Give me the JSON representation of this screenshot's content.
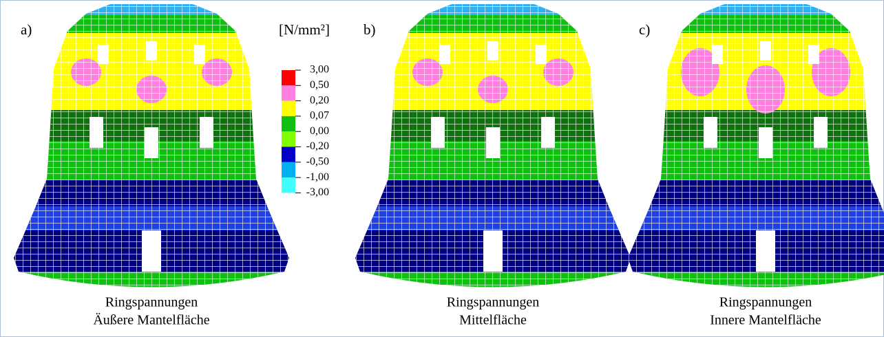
{
  "panels": [
    {
      "letter": "a)",
      "caption": [
        "Ringspannungen",
        "Äußere Mantelfläche"
      ]
    },
    {
      "letter": "b)",
      "caption": [
        "Ringspannungen",
        "Mittelfläche"
      ]
    },
    {
      "letter": "c)",
      "caption": [
        "Ringspannungen",
        "Innere Mantelfläche"
      ]
    }
  ],
  "legend": {
    "unit": "[N/mm²]",
    "labels": [
      "3,00",
      "0,50",
      "0,20",
      "0,07",
      "0,00",
      "-0,20",
      "-0,50",
      "-1,00",
      "-3,00"
    ],
    "colors": [
      "#ff0000",
      "#ff80e0",
      "#ffff00",
      "#10c010",
      "#80ff00",
      "#0000c8",
      "#00b0f0",
      "#40ffff"
    ]
  }
}
